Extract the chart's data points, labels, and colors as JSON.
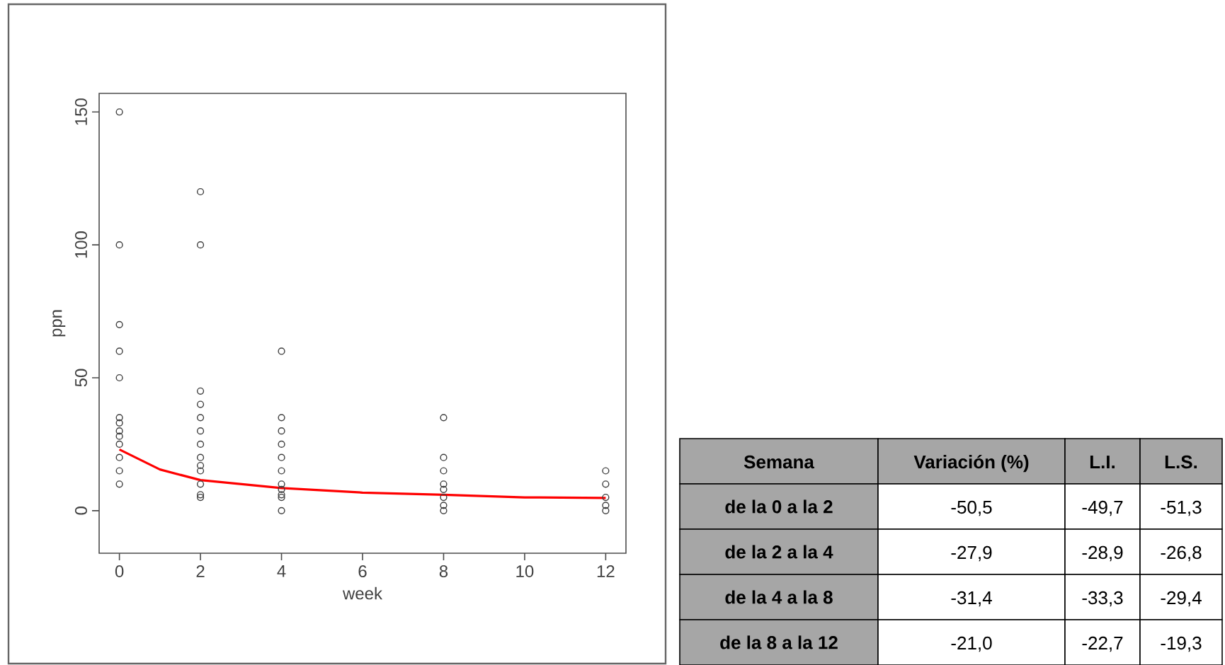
{
  "chart_data": [
    {
      "type": "scatter",
      "xlabel": "week",
      "ylabel": "ppn",
      "xlim": [
        -0.5,
        12.5
      ],
      "ylim": [
        -16,
        157
      ],
      "xticks": [
        0,
        2,
        4,
        6,
        8,
        10,
        12
      ],
      "yticks": [
        0,
        50,
        100,
        150
      ],
      "series": [
        {
          "type": "scatter",
          "marker": "circle",
          "color": "#404040",
          "x": [
            0,
            0,
            0,
            0,
            0,
            0,
            0,
            0,
            0,
            0,
            0,
            0,
            0,
            2,
            2,
            2,
            2,
            2,
            2,
            2,
            2,
            2,
            2,
            2,
            2,
            2,
            4,
            4,
            4,
            4,
            4,
            4,
            4,
            4,
            4,
            4,
            4,
            8,
            8,
            8,
            8,
            8,
            8,
            8,
            8,
            12,
            12,
            12,
            12,
            12
          ],
          "values": [
            150,
            100,
            70,
            60,
            50,
            35,
            33,
            30,
            28,
            25,
            20,
            15,
            10,
            120,
            100,
            45,
            40,
            35,
            30,
            25,
            20,
            17,
            15,
            10,
            6,
            5,
            60,
            35,
            30,
            25,
            20,
            15,
            10,
            8,
            6,
            5,
            0,
            35,
            20,
            15,
            10,
            8,
            5,
            2,
            0,
            15,
            10,
            5,
            2,
            0
          ]
        },
        {
          "type": "line",
          "marker": "none",
          "color": "#ff0000",
          "x": [
            0,
            1,
            2,
            4,
            6,
            8,
            10,
            12
          ],
          "values": [
            23,
            15.5,
            11.5,
            8.5,
            6.8,
            6,
            5,
            4.8
          ]
        }
      ]
    },
    {
      "type": "other",
      "xlabel": "Semana",
      "categories": [
        "de la 0 a la 2",
        "de la 2 a la 4",
        "de la 4 a la 8",
        "de la 8 a la 12"
      ],
      "series": [
        {
          "name": "Variación (%)",
          "color": "#ffffff",
          "values": [
            -50.5,
            -27.9,
            -31.4,
            -21.0
          ],
          "value_labels": [
            "-50,5",
            "-27,9",
            "-31,4",
            "-21,0"
          ]
        },
        {
          "name": "L.I.",
          "color": "#ffffff",
          "values": [
            -49.7,
            -28.9,
            -33.3,
            -22.7
          ],
          "value_labels": [
            "-49,7",
            "-28,9",
            "-33,3",
            "-22,7"
          ]
        },
        {
          "name": "L.S.",
          "color": "#ffffff",
          "values": [
            -51.3,
            -26.8,
            -29.4,
            -19.3
          ],
          "value_labels": [
            "-51,3",
            "-26,8",
            "-29,4",
            "-19,3"
          ]
        }
      ]
    }
  ]
}
